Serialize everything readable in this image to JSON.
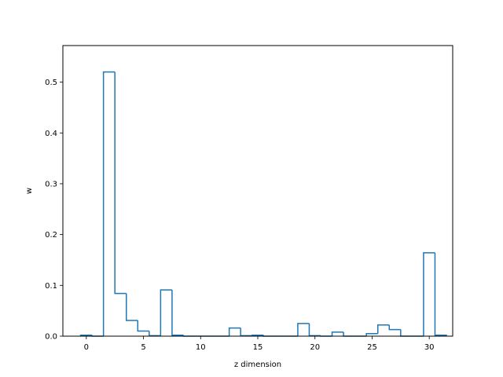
{
  "chart_data": {
    "type": "bar",
    "style": "step-histogram",
    "title": "",
    "xlabel": "z dimension",
    "ylabel": "w",
    "xlim": [
      -2.05,
      32.05
    ],
    "ylim": [
      0,
      0.572
    ],
    "xticks": [
      0,
      5,
      10,
      15,
      20,
      25,
      30
    ],
    "yticks": [
      0.0,
      0.1,
      0.2,
      0.3,
      0.4,
      0.5
    ],
    "ytick_labels": [
      "0.0",
      "0.1",
      "0.2",
      "0.3",
      "0.4",
      "0.5"
    ],
    "grid": false,
    "legend": "none",
    "color": "#1f77b4",
    "x": [
      0,
      1,
      2,
      3,
      4,
      5,
      6,
      7,
      8,
      9,
      10,
      11,
      12,
      13,
      14,
      15,
      16,
      17,
      18,
      19,
      20,
      21,
      22,
      23,
      24,
      25,
      26,
      27,
      28,
      29,
      30,
      31
    ],
    "values": [
      0.002,
      0.0,
      0.52,
      0.084,
      0.031,
      0.01,
      0.001,
      0.091,
      0.002,
      0.0,
      0.0,
      0.0,
      0.0,
      0.016,
      0.001,
      0.002,
      0.0,
      0.0,
      0.0,
      0.025,
      0.001,
      0.0,
      0.008,
      0.0,
      0.0,
      0.005,
      0.022,
      0.013,
      0.0,
      0.0,
      0.164,
      0.002
    ]
  }
}
